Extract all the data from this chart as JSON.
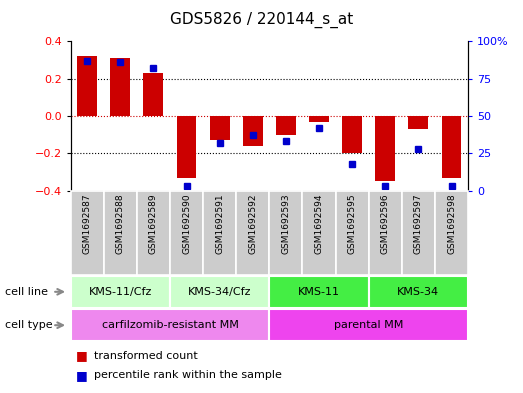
{
  "title": "GDS5826 / 220144_s_at",
  "samples": [
    "GSM1692587",
    "GSM1692588",
    "GSM1692589",
    "GSM1692590",
    "GSM1692591",
    "GSM1692592",
    "GSM1692593",
    "GSM1692594",
    "GSM1692595",
    "GSM1692596",
    "GSM1692597",
    "GSM1692598"
  ],
  "transformed_count": [
    0.32,
    0.31,
    0.23,
    -0.33,
    -0.13,
    -0.16,
    -0.1,
    -0.03,
    -0.2,
    -0.35,
    -0.07,
    -0.33
  ],
  "percentile_rank": [
    87,
    86,
    82,
    3,
    32,
    37,
    33,
    42,
    18,
    3,
    28,
    3
  ],
  "cell_line_groups": [
    {
      "label": "KMS-11/Cfz",
      "start": 0,
      "end": 2,
      "color": "#ccffcc"
    },
    {
      "label": "KMS-34/Cfz",
      "start": 3,
      "end": 5,
      "color": "#ccffcc"
    },
    {
      "label": "KMS-11",
      "start": 6,
      "end": 8,
      "color": "#44ee44"
    },
    {
      "label": "KMS-34",
      "start": 9,
      "end": 11,
      "color": "#44ee44"
    }
  ],
  "cell_type_groups": [
    {
      "label": "carfilzomib-resistant MM",
      "start": 0,
      "end": 5,
      "color": "#ee88ee"
    },
    {
      "label": "parental MM",
      "start": 6,
      "end": 11,
      "color": "#ee44ee"
    }
  ],
  "bar_color": "#cc0000",
  "dot_color": "#0000cc",
  "ylim": [
    -0.4,
    0.4
  ],
  "y2lim": [
    0,
    100
  ],
  "yticks": [
    -0.4,
    -0.2,
    0.0,
    0.2,
    0.4
  ],
  "y2ticks": [
    0,
    25,
    50,
    75,
    100
  ],
  "y2ticklabels": [
    "0",
    "25",
    "50",
    "75",
    "100%"
  ],
  "zero_line_color": "#cc0000",
  "grid_color": "black",
  "sample_bg_color": "#cccccc",
  "arrow_color": "#888888"
}
